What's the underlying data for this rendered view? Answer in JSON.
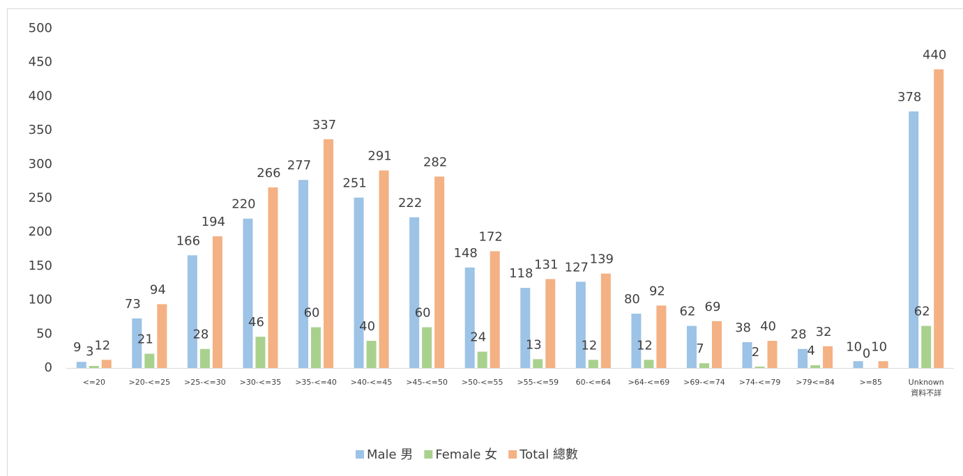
{
  "chart_data": {
    "type": "bar",
    "categories": [
      "<=20",
      ">20-<=25",
      ">25-<=30",
      ">30-<=35",
      ">35-<=40",
      ">40-<=45",
      ">45-<=50",
      ">50-<=55",
      ">55-<=59",
      "60-<=64",
      ">64-<=69",
      ">69-<=74",
      ">74-<=79",
      ">79<=84",
      ">=85",
      "Unknown\n資料不詳"
    ],
    "series": [
      {
        "name": "Male 男",
        "color": "#9dc3e6",
        "values": [
          9,
          73,
          166,
          220,
          277,
          251,
          222,
          148,
          118,
          127,
          80,
          62,
          38,
          28,
          10,
          378
        ]
      },
      {
        "name": "Female 女",
        "color": "#a9d18e",
        "values": [
          3,
          21,
          28,
          46,
          60,
          40,
          60,
          24,
          13,
          12,
          12,
          7,
          2,
          4,
          0,
          62
        ]
      },
      {
        "name": "Total 總數",
        "color": "#f4b183",
        "values": [
          12,
          94,
          194,
          266,
          337,
          291,
          282,
          172,
          131,
          139,
          92,
          69,
          40,
          32,
          10,
          440
        ]
      }
    ],
    "ylim": [
      0,
      500
    ],
    "yticks": [
      0,
      50,
      100,
      150,
      200,
      250,
      300,
      350,
      400,
      450,
      500
    ],
    "grid": false,
    "legend": "bottom"
  }
}
